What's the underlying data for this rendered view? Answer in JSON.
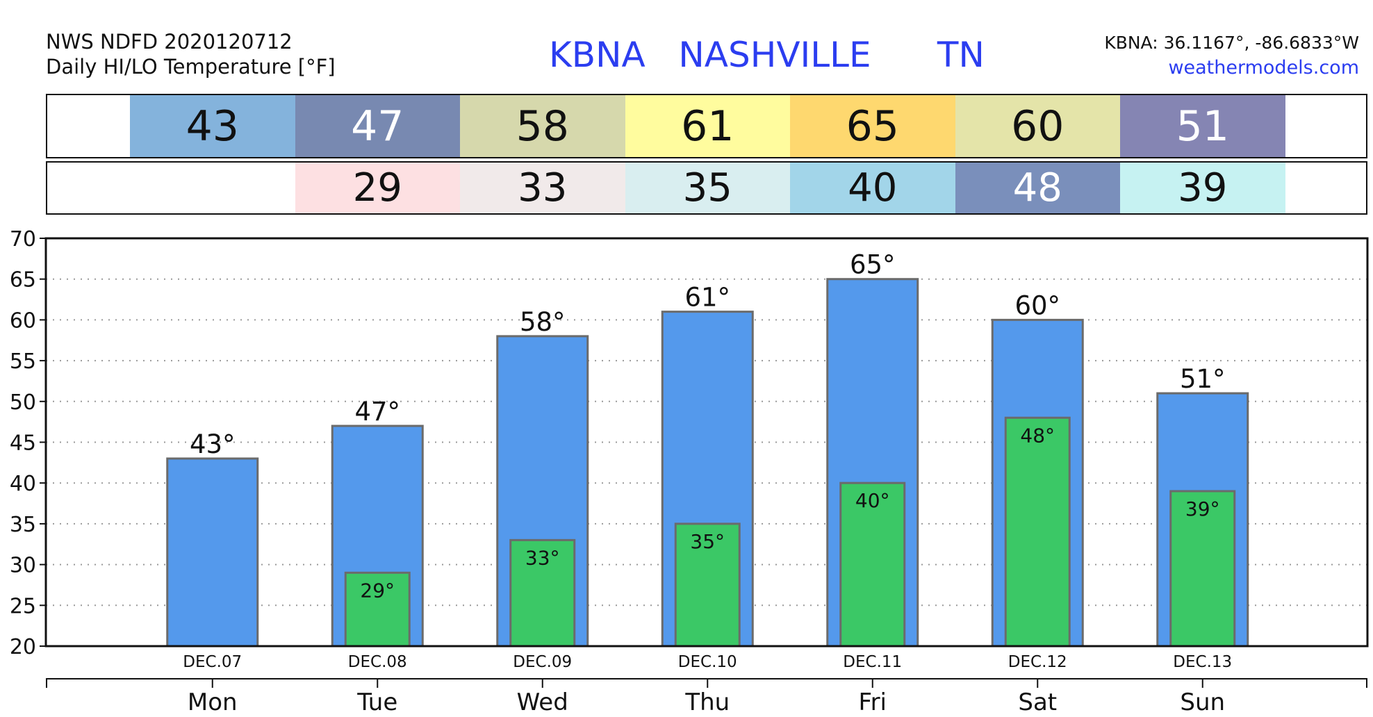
{
  "header": {
    "source": "NWS NDFD 2020120712",
    "product": "Daily HI/LO Temperature [°F]",
    "station_line": "KBNA   NASHVILLE      TN",
    "coords": "KBNA: 36.1167°, -86.6833°W",
    "site": "weathermodels.com"
  },
  "hi_band": [
    {
      "value": "43",
      "bg": "#84b3dc",
      "fg": "#111111"
    },
    {
      "value": "47",
      "bg": "#7889b1",
      "fg": "#ffffff"
    },
    {
      "value": "58",
      "bg": "#d6d8ac",
      "fg": "#111111"
    },
    {
      "value": "61",
      "bg": "#fffc9e",
      "fg": "#111111"
    },
    {
      "value": "65",
      "bg": "#fed86f",
      "fg": "#111111"
    },
    {
      "value": "60",
      "bg": "#e4e4a9",
      "fg": "#111111"
    },
    {
      "value": "51",
      "bg": "#8585b3",
      "fg": "#ffffff"
    }
  ],
  "lo_band": [
    {
      "value": "",
      "bg": "#ffffff",
      "fg": "#111111"
    },
    {
      "value": "29",
      "bg": "#fde0e2",
      "fg": "#111111"
    },
    {
      "value": "33",
      "bg": "#f1eaea",
      "fg": "#111111"
    },
    {
      "value": "35",
      "bg": "#d9eef0",
      "fg": "#111111"
    },
    {
      "value": "40",
      "bg": "#a2d5e9",
      "fg": "#111111"
    },
    {
      "value": "48",
      "bg": "#7a8fbb",
      "fg": "#ffffff"
    },
    {
      "value": "39",
      "bg": "#c6f2f2",
      "fg": "#111111"
    }
  ],
  "chart_data": {
    "type": "bar",
    "categories": [
      "DEC.07",
      "DEC.08",
      "DEC.09",
      "DEC.10",
      "DEC.11",
      "DEC.12",
      "DEC.13"
    ],
    "days": [
      "Mon",
      "Tue",
      "Wed",
      "Thu",
      "Fri",
      "Sat",
      "Sun"
    ],
    "series": [
      {
        "name": "HI",
        "values": [
          43,
          47,
          58,
          61,
          65,
          60,
          51
        ],
        "labels": [
          "43°",
          "47°",
          "58°",
          "61°",
          "65°",
          "60°",
          "51°"
        ],
        "color": "#5499ec"
      },
      {
        "name": "LO",
        "values": [
          null,
          29,
          33,
          35,
          40,
          48,
          39
        ],
        "labels": [
          "",
          "29°",
          "33°",
          "35°",
          "40°",
          "48°",
          "39°"
        ],
        "color": "#3bc866"
      }
    ],
    "ylim": [
      20,
      70
    ],
    "yticks": [
      "20",
      "25",
      "30",
      "35",
      "40",
      "45",
      "50",
      "55",
      "60",
      "65",
      "70"
    ],
    "grid": true
  }
}
